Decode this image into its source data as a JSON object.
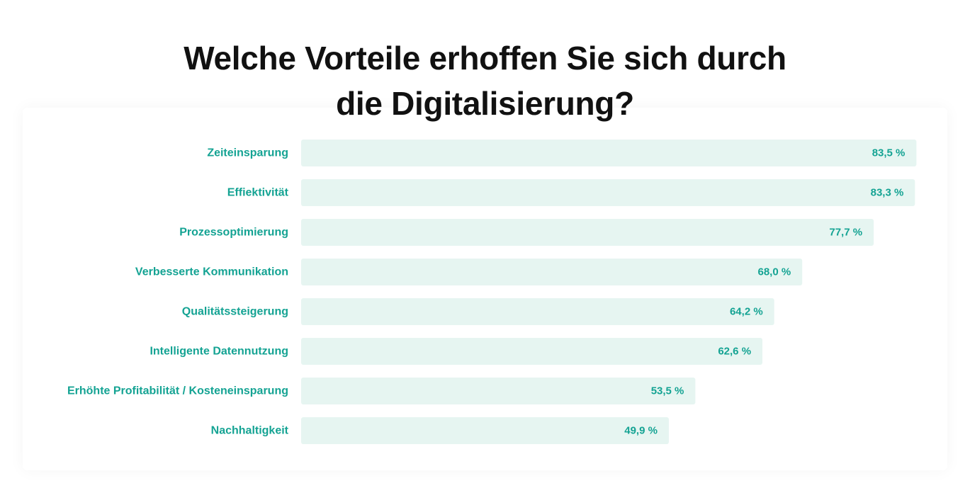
{
  "chart_data": {
    "type": "bar",
    "orientation": "horizontal",
    "title": [
      "Welche Vorteile erhoffen Sie sich durch",
      "die Digitalisierung?"
    ],
    "categories": [
      "Zeiteinsparung",
      "Effiektivität",
      "Prozessoptimierung",
      "Verbesserte Kommunikation",
      "Qualitätssteigerung",
      "Intelligente Datennutzung",
      "Erhöhte Profitabilität / Kosteneinsparung",
      "Nachhaltigkeit"
    ],
    "values": [
      83.5,
      83.3,
      77.7,
      68.0,
      64.2,
      62.6,
      53.5,
      49.9
    ],
    "value_labels": [
      "83,5 %",
      "83,3 %",
      "77,7 %",
      "68,0 %",
      "64,2 %",
      "62,6 %",
      "53,5 %",
      "49,9 %"
    ],
    "xlim": [
      0,
      100
    ],
    "grid": false,
    "legend": "none",
    "colors": {
      "bar": "#e6f5f1",
      "text": "#14a393",
      "title": "#111111"
    }
  }
}
